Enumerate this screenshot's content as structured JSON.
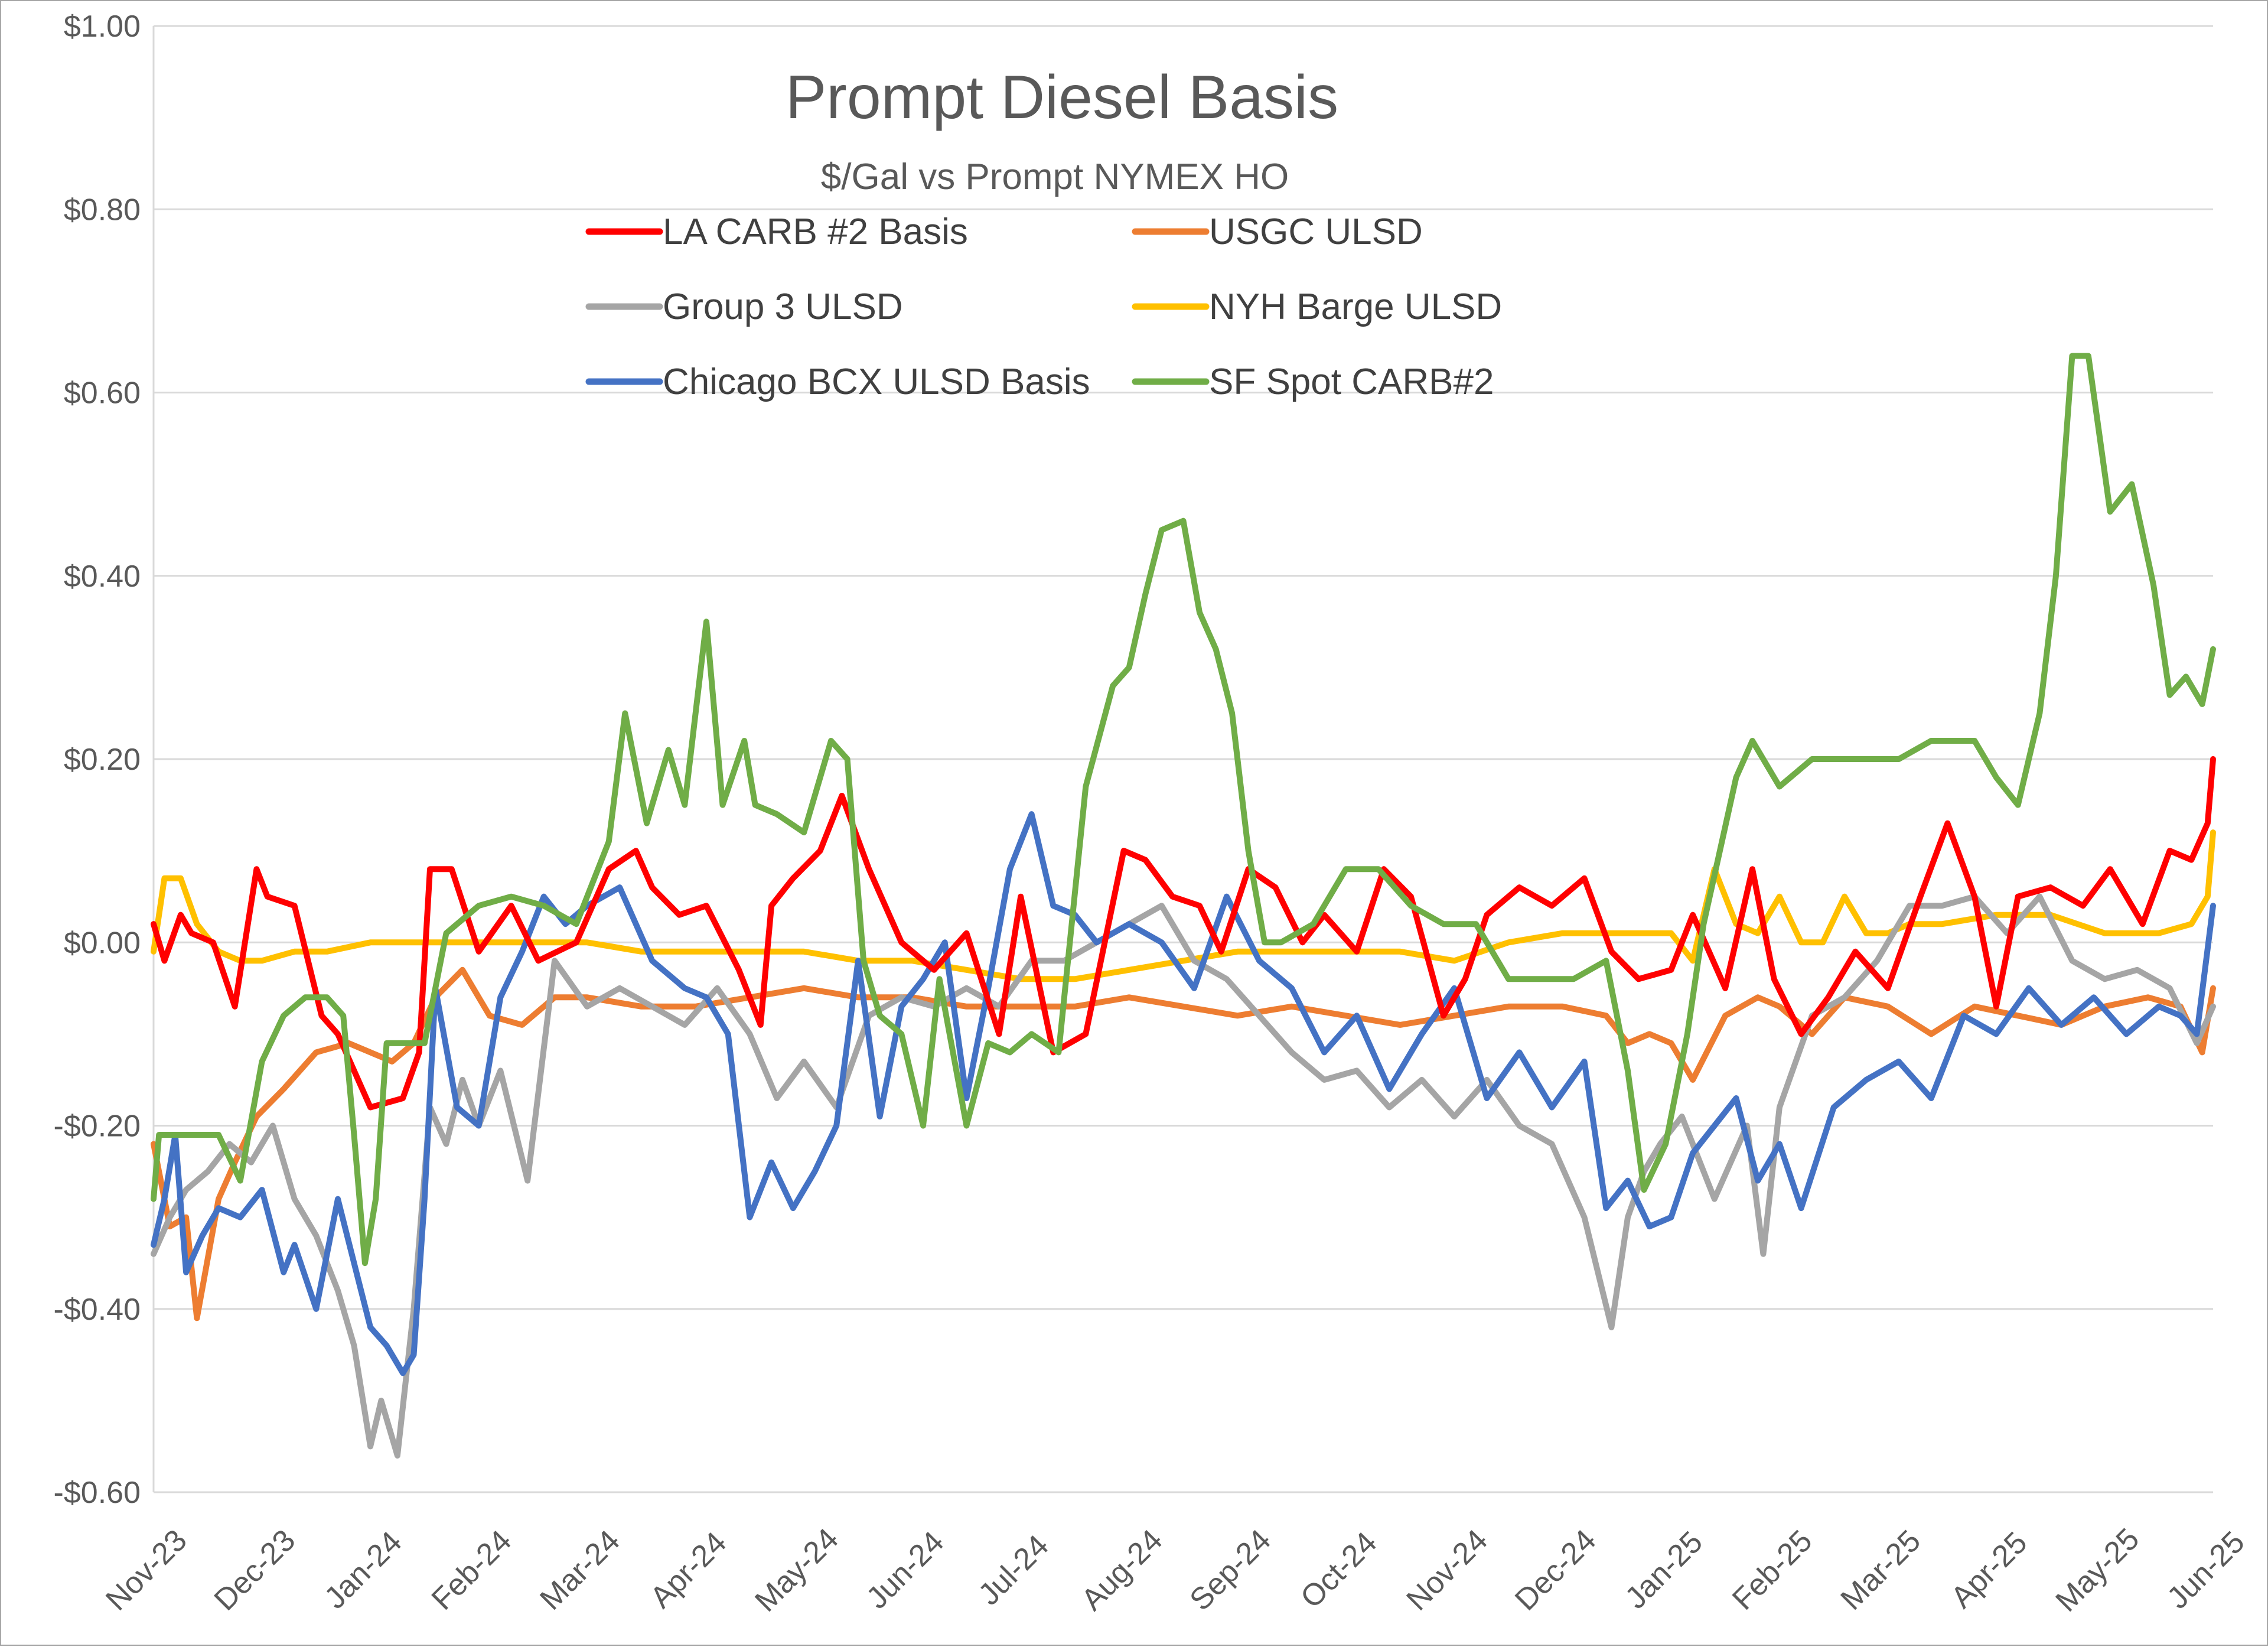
{
  "chart_data": {
    "type": "line",
    "title": "Prompt Diesel Basis",
    "subtitle": "$/Gal vs  Prompt NYMEX HO",
    "xlabel": "",
    "ylabel": "",
    "ylim": [
      -0.6,
      1.0
    ],
    "y_ticks": [
      1.0,
      0.8,
      0.6,
      0.4,
      0.2,
      0.0,
      -0.2,
      -0.4,
      -0.6
    ],
    "y_tick_labels": [
      "$1.00",
      "$0.80",
      "$0.60",
      "$0.40",
      "$0.20",
      "$0.00",
      "-$0.20",
      "-$0.40",
      "-$0.60"
    ],
    "x_range_months": [
      0,
      19
    ],
    "x_tick_labels": [
      "Nov-23",
      "Dec-23",
      "Jan-24",
      "Feb-24",
      "Mar-24",
      "Apr-24",
      "May-24",
      "Jun-24",
      "Jul-24",
      "Aug-24",
      "Sep-24",
      "Oct-24",
      "Nov-24",
      "Dec-24",
      "Jan-25",
      "Feb-25",
      "Mar-25",
      "Apr-25",
      "May-25",
      "Jun-25"
    ],
    "grid": true,
    "legend_position": "top",
    "series": [
      {
        "name": "LA CARB #2 Basis",
        "color": "#ff0000",
        "x": [
          0,
          0.1,
          0.25,
          0.35,
          0.55,
          0.75,
          0.95,
          1.05,
          1.3,
          1.55,
          1.7,
          2.0,
          2.3,
          2.45,
          2.55,
          2.75,
          3.0,
          3.3,
          3.55,
          3.9,
          4.2,
          4.45,
          4.6,
          4.85,
          5.1,
          5.4,
          5.6,
          5.7,
          5.9,
          6.15,
          6.35,
          6.6,
          6.9,
          7.2,
          7.5,
          7.8,
          8.0,
          8.3,
          8.6,
          8.95,
          9.15,
          9.4,
          9.65,
          9.85,
          10.1,
          10.35,
          10.6,
          10.8,
          11.1,
          11.35,
          11.6,
          11.9,
          12.1,
          12.3,
          12.6,
          12.9,
          13.2,
          13.45,
          13.7,
          14.0,
          14.2,
          14.5,
          14.75,
          14.95,
          15.2,
          15.45,
          15.7,
          16.0,
          16.3,
          16.55,
          16.8,
          17.0,
          17.2,
          17.5,
          17.8,
          18.05,
          18.35,
          18.6,
          18.8,
          18.95,
          19.0
        ],
        "y": [
          0.02,
          -0.02,
          0.03,
          0.01,
          0.0,
          -0.07,
          0.08,
          0.05,
          0.04,
          -0.08,
          -0.1,
          -0.18,
          -0.17,
          -0.12,
          0.08,
          0.08,
          -0.01,
          0.04,
          -0.02,
          0.0,
          0.08,
          0.1,
          0.06,
          0.03,
          0.04,
          -0.03,
          -0.09,
          0.04,
          0.07,
          0.1,
          0.16,
          0.08,
          0.0,
          -0.03,
          0.01,
          -0.1,
          0.05,
          -0.12,
          -0.1,
          0.1,
          0.09,
          0.05,
          0.04,
          -0.01,
          0.08,
          0.06,
          0.0,
          0.03,
          -0.01,
          0.08,
          0.05,
          -0.08,
          -0.04,
          0.03,
          0.06,
          0.04,
          0.07,
          -0.01,
          -0.04,
          -0.03,
          0.03,
          -0.05,
          0.08,
          -0.04,
          -0.1,
          -0.06,
          -0.01,
          -0.05,
          0.05,
          0.13,
          0.05,
          -0.07,
          0.05,
          0.06,
          0.04,
          0.08,
          0.02,
          0.1,
          0.09,
          0.13,
          0.2
        ]
      },
      {
        "name": "USGC ULSD",
        "color": "#ed7d31",
        "x": [
          0,
          0.15,
          0.3,
          0.4,
          0.6,
          0.75,
          0.95,
          1.2,
          1.5,
          1.8,
          2.0,
          2.2,
          2.4,
          2.6,
          2.85,
          3.1,
          3.4,
          3.7,
          4.0,
          4.5,
          5.0,
          5.5,
          6.0,
          6.5,
          7.0,
          7.5,
          8.0,
          8.5,
          9.0,
          9.5,
          10.0,
          10.5,
          11.0,
          11.5,
          12.0,
          12.5,
          13.0,
          13.4,
          13.6,
          13.8,
          14.0,
          14.2,
          14.5,
          14.8,
          15.0,
          15.3,
          15.6,
          16.0,
          16.4,
          16.8,
          17.2,
          17.6,
          18.0,
          18.4,
          18.7,
          18.9,
          19.0
        ],
        "y": [
          -0.22,
          -0.31,
          -0.3,
          -0.41,
          -0.28,
          -0.24,
          -0.19,
          -0.16,
          -0.12,
          -0.11,
          -0.12,
          -0.13,
          -0.11,
          -0.06,
          -0.03,
          -0.08,
          -0.09,
          -0.06,
          -0.06,
          -0.07,
          -0.07,
          -0.06,
          -0.05,
          -0.06,
          -0.06,
          -0.07,
          -0.07,
          -0.07,
          -0.06,
          -0.07,
          -0.08,
          -0.07,
          -0.08,
          -0.09,
          -0.08,
          -0.07,
          -0.07,
          -0.08,
          -0.11,
          -0.1,
          -0.11,
          -0.15,
          -0.08,
          -0.06,
          -0.07,
          -0.1,
          -0.06,
          -0.07,
          -0.1,
          -0.07,
          -0.08,
          -0.09,
          -0.07,
          -0.06,
          -0.07,
          -0.12,
          -0.05
        ]
      },
      {
        "name": "Group 3 ULSD",
        "color": "#a5a5a5",
        "x": [
          0,
          0.15,
          0.3,
          0.5,
          0.7,
          0.9,
          1.1,
          1.3,
          1.5,
          1.7,
          1.85,
          2.0,
          2.1,
          2.25,
          2.4,
          2.55,
          2.7,
          2.85,
          3.0,
          3.2,
          3.45,
          3.7,
          4.0,
          4.3,
          4.6,
          4.9,
          5.2,
          5.5,
          5.75,
          6.0,
          6.3,
          6.6,
          6.9,
          7.2,
          7.5,
          7.8,
          8.1,
          8.4,
          8.7,
          9.0,
          9.3,
          9.6,
          9.9,
          10.2,
          10.5,
          10.8,
          11.1,
          11.4,
          11.7,
          12.0,
          12.3,
          12.6,
          12.9,
          13.2,
          13.45,
          13.6,
          13.75,
          13.9,
          14.1,
          14.4,
          14.7,
          14.85,
          15.0,
          15.3,
          15.6,
          15.9,
          16.2,
          16.5,
          16.8,
          17.1,
          17.4,
          17.7,
          18.0,
          18.3,
          18.6,
          18.85,
          19.0
        ],
        "y": [
          -0.34,
          -0.3,
          -0.27,
          -0.25,
          -0.22,
          -0.24,
          -0.2,
          -0.28,
          -0.32,
          -0.38,
          -0.44,
          -0.55,
          -0.5,
          -0.56,
          -0.4,
          -0.18,
          -0.22,
          -0.15,
          -0.2,
          -0.14,
          -0.26,
          -0.02,
          -0.07,
          -0.05,
          -0.07,
          -0.09,
          -0.05,
          -0.1,
          -0.17,
          -0.13,
          -0.18,
          -0.08,
          -0.06,
          -0.07,
          -0.05,
          -0.07,
          -0.02,
          -0.02,
          0.0,
          0.02,
          0.04,
          -0.02,
          -0.04,
          -0.08,
          -0.12,
          -0.15,
          -0.14,
          -0.18,
          -0.15,
          -0.19,
          -0.15,
          -0.2,
          -0.22,
          -0.3,
          -0.42,
          -0.3,
          -0.25,
          -0.22,
          -0.19,
          -0.28,
          -0.2,
          -0.34,
          -0.18,
          -0.08,
          -0.06,
          -0.02,
          0.04,
          0.04,
          0.05,
          0.01,
          0.05,
          -0.02,
          -0.04,
          -0.03,
          -0.05,
          -0.11,
          -0.07
        ]
      },
      {
        "name": "NYH Barge ULSD",
        "color": "#ffc000",
        "x": [
          0,
          0.1,
          0.25,
          0.4,
          0.6,
          0.8,
          1.0,
          1.3,
          1.6,
          2.0,
          2.5,
          3.0,
          3.5,
          4.0,
          4.5,
          5.0,
          5.5,
          6.0,
          6.5,
          7.0,
          7.5,
          8.0,
          8.5,
          9.0,
          9.5,
          10.0,
          10.5,
          11.0,
          11.5,
          12.0,
          12.5,
          13.0,
          13.5,
          14.0,
          14.2,
          14.4,
          14.6,
          14.8,
          15.0,
          15.2,
          15.4,
          15.6,
          15.8,
          16.0,
          16.2,
          16.5,
          17.0,
          17.5,
          18.0,
          18.5,
          18.8,
          18.95,
          19.0
        ],
        "y": [
          -0.01,
          0.07,
          0.07,
          0.02,
          -0.01,
          -0.02,
          -0.02,
          -0.01,
          -0.01,
          0.0,
          0.0,
          0.0,
          0.0,
          0.0,
          -0.01,
          -0.01,
          -0.01,
          -0.01,
          -0.02,
          -0.02,
          -0.03,
          -0.04,
          -0.04,
          -0.03,
          -0.02,
          -0.01,
          -0.01,
          -0.01,
          -0.01,
          -0.02,
          0.0,
          0.01,
          0.01,
          0.01,
          -0.02,
          0.08,
          0.02,
          0.01,
          0.05,
          0.0,
          0.0,
          0.05,
          0.01,
          0.01,
          0.02,
          0.02,
          0.03,
          0.03,
          0.01,
          0.01,
          0.02,
          0.05,
          0.12
        ]
      },
      {
        "name": "Chicago BCX ULSD Basis",
        "color": "#4472c4",
        "x": [
          0,
          0.1,
          0.2,
          0.3,
          0.45,
          0.6,
          0.8,
          1.0,
          1.2,
          1.3,
          1.5,
          1.7,
          1.85,
          2.0,
          2.15,
          2.3,
          2.4,
          2.5,
          2.6,
          2.8,
          3.0,
          3.2,
          3.4,
          3.6,
          3.8,
          4.0,
          4.3,
          4.6,
          4.9,
          5.1,
          5.3,
          5.5,
          5.7,
          5.9,
          6.1,
          6.3,
          6.5,
          6.7,
          6.9,
          7.1,
          7.3,
          7.5,
          7.7,
          7.9,
          8.1,
          8.3,
          8.5,
          8.7,
          9.0,
          9.3,
          9.6,
          9.9,
          10.2,
          10.5,
          10.8,
          11.1,
          11.4,
          11.7,
          12.0,
          12.3,
          12.6,
          12.9,
          13.2,
          13.4,
          13.6,
          13.8,
          14.0,
          14.2,
          14.4,
          14.6,
          14.8,
          15.0,
          15.2,
          15.5,
          15.8,
          16.1,
          16.4,
          16.7,
          17.0,
          17.3,
          17.6,
          17.9,
          18.2,
          18.5,
          18.7,
          18.85,
          19.0
        ],
        "y": [
          -0.33,
          -0.28,
          -0.21,
          -0.36,
          -0.32,
          -0.29,
          -0.3,
          -0.27,
          -0.36,
          -0.33,
          -0.4,
          -0.28,
          -0.35,
          -0.42,
          -0.44,
          -0.47,
          -0.45,
          -0.28,
          -0.05,
          -0.18,
          -0.2,
          -0.06,
          -0.01,
          0.05,
          0.02,
          0.04,
          0.06,
          -0.02,
          -0.05,
          -0.06,
          -0.1,
          -0.3,
          -0.24,
          -0.29,
          -0.25,
          -0.2,
          -0.02,
          -0.19,
          -0.07,
          -0.04,
          0.0,
          -0.17,
          -0.05,
          0.08,
          0.14,
          0.04,
          0.03,
          0.0,
          0.02,
          0.0,
          -0.05,
          0.05,
          -0.02,
          -0.05,
          -0.12,
          -0.08,
          -0.16,
          -0.1,
          -0.05,
          -0.17,
          -0.12,
          -0.18,
          -0.13,
          -0.29,
          -0.26,
          -0.31,
          -0.3,
          -0.23,
          -0.2,
          -0.17,
          -0.26,
          -0.22,
          -0.29,
          -0.18,
          -0.15,
          -0.13,
          -0.17,
          -0.08,
          -0.1,
          -0.05,
          -0.09,
          -0.06,
          -0.1,
          -0.07,
          -0.08,
          -0.1,
          0.04
        ]
      },
      {
        "name": "SF Spot CARB#2",
        "color": "#70ad47",
        "x": [
          0,
          0.05,
          0.15,
          0.3,
          0.6,
          0.8,
          1.0,
          1.2,
          1.4,
          1.6,
          1.75,
          1.85,
          1.95,
          2.05,
          2.15,
          2.3,
          2.5,
          2.7,
          3.0,
          3.3,
          3.6,
          3.9,
          4.2,
          4.35,
          4.55,
          4.75,
          4.9,
          5.1,
          5.25,
          5.45,
          5.55,
          5.75,
          6.0,
          6.25,
          6.4,
          6.55,
          6.7,
          6.9,
          7.1,
          7.25,
          7.5,
          7.7,
          7.9,
          8.1,
          8.35,
          8.6,
          8.85,
          9.0,
          9.15,
          9.3,
          9.5,
          9.65,
          9.8,
          9.95,
          10.1,
          10.25,
          10.4,
          10.7,
          11.0,
          11.3,
          11.6,
          11.9,
          12.2,
          12.5,
          12.8,
          13.1,
          13.4,
          13.6,
          13.75,
          13.95,
          14.15,
          14.3,
          14.45,
          14.6,
          14.75,
          15.0,
          15.3,
          15.7,
          16.1,
          16.4,
          16.6,
          16.8,
          17.0,
          17.2,
          17.4,
          17.55,
          17.7,
          17.85,
          18.05,
          18.25,
          18.45,
          18.6,
          18.75,
          18.9,
          19.0
        ],
        "y": [
          -0.28,
          -0.21,
          -0.21,
          -0.21,
          -0.21,
          -0.26,
          -0.13,
          -0.08,
          -0.06,
          -0.06,
          -0.08,
          -0.21,
          -0.35,
          -0.28,
          -0.11,
          -0.11,
          -0.11,
          0.01,
          0.04,
          0.05,
          0.04,
          0.02,
          0.11,
          0.25,
          0.13,
          0.21,
          0.15,
          0.35,
          0.15,
          0.22,
          0.15,
          0.14,
          0.12,
          0.22,
          0.2,
          -0.02,
          -0.08,
          -0.1,
          -0.2,
          -0.04,
          -0.2,
          -0.11,
          -0.12,
          -0.1,
          -0.12,
          0.17,
          0.28,
          0.3,
          0.38,
          0.45,
          0.46,
          0.36,
          0.32,
          0.25,
          0.1,
          0.0,
          0.0,
          0.02,
          0.08,
          0.08,
          0.04,
          0.02,
          0.02,
          -0.04,
          -0.04,
          -0.04,
          -0.02,
          -0.14,
          -0.27,
          -0.22,
          -0.1,
          0.02,
          0.1,
          0.18,
          0.22,
          0.17,
          0.2,
          0.2,
          0.2,
          0.22,
          0.22,
          0.22,
          0.18,
          0.15,
          0.25,
          0.4,
          0.64,
          0.64,
          0.47,
          0.5,
          0.39,
          0.27,
          0.29,
          0.26,
          0.32
        ]
      }
    ]
  }
}
